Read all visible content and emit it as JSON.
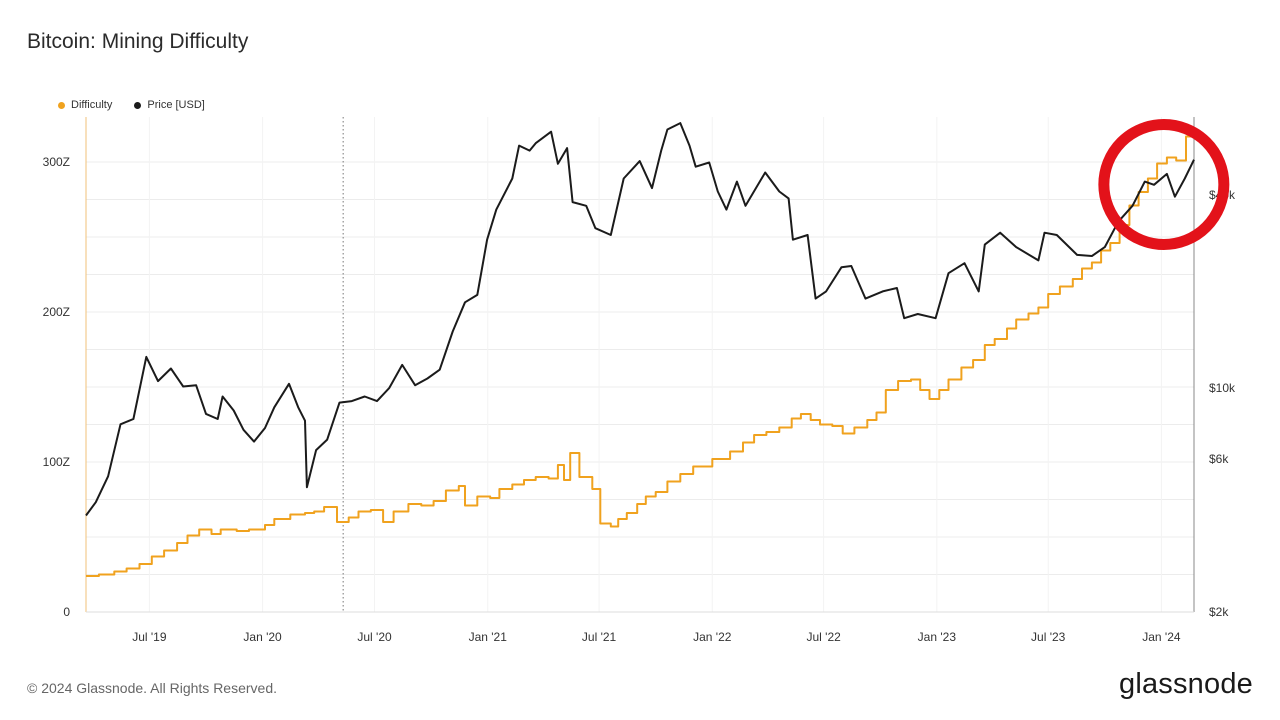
{
  "page": {
    "title": "Bitcoin: Mining Difficulty",
    "footer": "© 2024 Glassnode. All Rights Reserved.",
    "logo": "glassnode"
  },
  "colors": {
    "difficulty": "#f0a21e",
    "price": "#1b1b1b",
    "annotation": "#e3121a",
    "grid": "#ececec",
    "axis_text": "#333333"
  },
  "legend": [
    {
      "label": "Difficulty",
      "color": "#f0a21e"
    },
    {
      "label": "Price [USD]",
      "color": "#1b1b1b"
    }
  ],
  "chart_data": {
    "type": "line",
    "title": "Bitcoin: Mining Difficulty",
    "x_axis": {
      "type": "date",
      "ticks": [
        "Jul '19",
        "Jan '20",
        "Jul '20",
        "Jan '21",
        "Jul '21",
        "Jan '22",
        "Jul '22",
        "Jan '23",
        "Jul '23",
        "Jan '24"
      ],
      "range": [
        "2019-03-20",
        "2024-02-23"
      ]
    },
    "y_left": {
      "label": "",
      "ticks": [
        "0",
        "100Z",
        "200Z",
        "300Z"
      ],
      "range": [
        0,
        330
      ],
      "unit": "Z"
    },
    "y_right": {
      "label": "",
      "scale": "log",
      "ticks": [
        "$2k",
        "$6k",
        "$10k",
        "$40k"
      ],
      "range": [
        2000,
        70000
      ]
    },
    "grid": true,
    "legend_position": "top-left",
    "series": [
      {
        "name": "Difficulty",
        "axis": "left",
        "step": true,
        "points": [
          [
            "2019-03-20",
            24
          ],
          [
            "2019-04-10",
            25
          ],
          [
            "2019-05-05",
            27
          ],
          [
            "2019-05-25",
            29
          ],
          [
            "2019-06-15",
            32
          ],
          [
            "2019-07-05",
            37
          ],
          [
            "2019-07-25",
            41
          ],
          [
            "2019-08-15",
            46
          ],
          [
            "2019-09-01",
            51
          ],
          [
            "2019-09-20",
            55
          ],
          [
            "2019-10-10",
            52
          ],
          [
            "2019-10-25",
            55
          ],
          [
            "2019-11-20",
            54
          ],
          [
            "2019-12-10",
            55
          ],
          [
            "2020-01-05",
            58
          ],
          [
            "2020-01-20",
            62
          ],
          [
            "2020-02-15",
            65
          ],
          [
            "2020-03-10",
            66
          ],
          [
            "2020-03-25",
            67
          ],
          [
            "2020-04-10",
            70
          ],
          [
            "2020-05-01",
            60
          ],
          [
            "2020-05-20",
            63
          ],
          [
            "2020-06-05",
            67
          ],
          [
            "2020-06-25",
            68
          ],
          [
            "2020-07-15",
            60
          ],
          [
            "2020-08-01",
            67
          ],
          [
            "2020-08-25",
            72
          ],
          [
            "2020-09-15",
            71
          ],
          [
            "2020-10-05",
            74
          ],
          [
            "2020-10-25",
            81
          ],
          [
            "2020-11-15",
            84
          ],
          [
            "2020-11-25",
            71
          ],
          [
            "2020-12-15",
            77
          ],
          [
            "2021-01-05",
            76
          ],
          [
            "2021-01-20",
            82
          ],
          [
            "2021-02-10",
            85
          ],
          [
            "2021-03-01",
            88
          ],
          [
            "2021-03-20",
            90
          ],
          [
            "2021-04-10",
            89
          ],
          [
            "2021-04-25",
            98
          ],
          [
            "2021-05-05",
            88
          ],
          [
            "2021-05-15",
            106
          ],
          [
            "2021-05-30",
            90
          ],
          [
            "2021-06-20",
            82
          ],
          [
            "2021-07-03",
            59
          ],
          [
            "2021-07-20",
            57
          ],
          [
            "2021-08-01",
            62
          ],
          [
            "2021-08-15",
            66
          ],
          [
            "2021-09-01",
            72
          ],
          [
            "2021-09-15",
            77
          ],
          [
            "2021-10-01",
            80
          ],
          [
            "2021-10-20",
            87
          ],
          [
            "2021-11-10",
            92
          ],
          [
            "2021-12-01",
            97
          ],
          [
            "2022-01-01",
            102
          ],
          [
            "2022-01-30",
            107
          ],
          [
            "2022-02-20",
            113
          ],
          [
            "2022-03-10",
            118
          ],
          [
            "2022-03-30",
            120
          ],
          [
            "2022-04-20",
            123
          ],
          [
            "2022-05-10",
            129
          ],
          [
            "2022-05-25",
            132
          ],
          [
            "2022-06-10",
            128
          ],
          [
            "2022-06-25",
            125
          ],
          [
            "2022-07-15",
            124
          ],
          [
            "2022-08-01",
            119
          ],
          [
            "2022-08-20",
            123
          ],
          [
            "2022-09-10",
            128
          ],
          [
            "2022-09-25",
            133
          ],
          [
            "2022-10-10",
            148
          ],
          [
            "2022-10-30",
            154
          ],
          [
            "2022-11-20",
            155
          ],
          [
            "2022-12-05",
            148
          ],
          [
            "2022-12-20",
            142
          ],
          [
            "2023-01-05",
            148
          ],
          [
            "2023-01-20",
            155
          ],
          [
            "2023-02-10",
            163
          ],
          [
            "2023-03-01",
            168
          ],
          [
            "2023-03-20",
            178
          ],
          [
            "2023-04-05",
            182
          ],
          [
            "2023-04-25",
            189
          ],
          [
            "2023-05-10",
            195
          ],
          [
            "2023-05-30",
            199
          ],
          [
            "2023-06-15",
            203
          ],
          [
            "2023-07-01",
            212
          ],
          [
            "2023-07-20",
            217
          ],
          [
            "2023-08-10",
            222
          ],
          [
            "2023-08-25",
            229
          ],
          [
            "2023-09-10",
            233
          ],
          [
            "2023-09-25",
            241
          ],
          [
            "2023-10-10",
            246
          ],
          [
            "2023-10-25",
            258
          ],
          [
            "2023-11-10",
            271
          ],
          [
            "2023-11-25",
            280
          ],
          [
            "2023-12-10",
            289
          ],
          [
            "2023-12-25",
            299
          ],
          [
            "2024-01-10",
            303
          ],
          [
            "2024-01-25",
            301
          ],
          [
            "2024-02-10",
            317
          ],
          [
            "2024-02-23",
            317
          ]
        ]
      },
      {
        "name": "Price [USD]",
        "axis": "right",
        "step": false,
        "points": [
          [
            "2019-03-20",
            4000
          ],
          [
            "2019-04-05",
            4400
          ],
          [
            "2019-04-25",
            5300
          ],
          [
            "2019-05-15",
            7700
          ],
          [
            "2019-06-05",
            8000
          ],
          [
            "2019-06-26",
            12500
          ],
          [
            "2019-07-15",
            10500
          ],
          [
            "2019-08-05",
            11500
          ],
          [
            "2019-08-25",
            10100
          ],
          [
            "2019-09-15",
            10200
          ],
          [
            "2019-10-01",
            8300
          ],
          [
            "2019-10-20",
            8000
          ],
          [
            "2019-10-28",
            9400
          ],
          [
            "2019-11-15",
            8500
          ],
          [
            "2019-12-01",
            7400
          ],
          [
            "2019-12-18",
            6800
          ],
          [
            "2020-01-05",
            7500
          ],
          [
            "2020-01-20",
            8700
          ],
          [
            "2020-02-13",
            10300
          ],
          [
            "2020-02-28",
            8700
          ],
          [
            "2020-03-10",
            7900
          ],
          [
            "2020-03-13",
            4900
          ],
          [
            "2020-03-28",
            6400
          ],
          [
            "2020-04-15",
            6900
          ],
          [
            "2020-05-05",
            9000
          ],
          [
            "2020-05-25",
            9100
          ],
          [
            "2020-06-15",
            9400
          ],
          [
            "2020-07-05",
            9100
          ],
          [
            "2020-07-25",
            10000
          ],
          [
            "2020-08-15",
            11800
          ],
          [
            "2020-09-05",
            10200
          ],
          [
            "2020-09-25",
            10700
          ],
          [
            "2020-10-15",
            11400
          ],
          [
            "2020-11-05",
            15000
          ],
          [
            "2020-11-25",
            18500
          ],
          [
            "2020-12-15",
            19500
          ],
          [
            "2020-12-31",
            29000
          ],
          [
            "2021-01-15",
            36000
          ],
          [
            "2021-02-10",
            45000
          ],
          [
            "2021-02-21",
            57000
          ],
          [
            "2021-03-10",
            55000
          ],
          [
            "2021-03-20",
            58000
          ],
          [
            "2021-04-14",
            63000
          ],
          [
            "2021-04-25",
            50000
          ],
          [
            "2021-05-10",
            56000
          ],
          [
            "2021-05-19",
            38000
          ],
          [
            "2021-06-10",
            37000
          ],
          [
            "2021-06-25",
            31500
          ],
          [
            "2021-07-20",
            30000
          ],
          [
            "2021-08-10",
            45000
          ],
          [
            "2021-09-05",
            51000
          ],
          [
            "2021-09-25",
            42000
          ],
          [
            "2021-10-10",
            55000
          ],
          [
            "2021-10-20",
            64000
          ],
          [
            "2021-11-10",
            67000
          ],
          [
            "2021-11-25",
            57000
          ],
          [
            "2021-12-05",
            49000
          ],
          [
            "2021-12-27",
            50500
          ],
          [
            "2022-01-10",
            41000
          ],
          [
            "2022-01-24",
            36000
          ],
          [
            "2022-02-10",
            44000
          ],
          [
            "2022-02-24",
            37000
          ],
          [
            "2022-03-28",
            47000
          ],
          [
            "2022-04-20",
            41000
          ],
          [
            "2022-05-05",
            39000
          ],
          [
            "2022-05-12",
            29000
          ],
          [
            "2022-06-05",
            30000
          ],
          [
            "2022-06-18",
            19000
          ],
          [
            "2022-07-05",
            20000
          ],
          [
            "2022-07-30",
            23800
          ],
          [
            "2022-08-15",
            24000
          ],
          [
            "2022-09-07",
            19000
          ],
          [
            "2022-10-05",
            20000
          ],
          [
            "2022-10-28",
            20500
          ],
          [
            "2022-11-09",
            16500
          ],
          [
            "2022-12-01",
            17000
          ],
          [
            "2022-12-30",
            16500
          ],
          [
            "2023-01-20",
            22800
          ],
          [
            "2023-02-15",
            24500
          ],
          [
            "2023-03-10",
            20000
          ],
          [
            "2023-03-20",
            28000
          ],
          [
            "2023-04-14",
            30500
          ],
          [
            "2023-05-10",
            27500
          ],
          [
            "2023-06-15",
            25000
          ],
          [
            "2023-06-25",
            30500
          ],
          [
            "2023-07-15",
            30000
          ],
          [
            "2023-08-17",
            26000
          ],
          [
            "2023-09-10",
            25800
          ],
          [
            "2023-10-01",
            27500
          ],
          [
            "2023-10-23",
            33000
          ],
          [
            "2023-11-15",
            37000
          ],
          [
            "2023-12-05",
            44000
          ],
          [
            "2023-12-20",
            43000
          ],
          [
            "2024-01-10",
            46500
          ],
          [
            "2024-01-23",
            39500
          ],
          [
            "2024-02-08",
            45000
          ],
          [
            "2024-02-23",
            51500
          ]
        ]
      }
    ],
    "annotations": [
      {
        "type": "vertical-dotted-line",
        "x": "2020-05-11"
      },
      {
        "type": "circle",
        "color": "#e3121a",
        "center": [
          "2024-01-05",
          285
        ]
      }
    ]
  }
}
